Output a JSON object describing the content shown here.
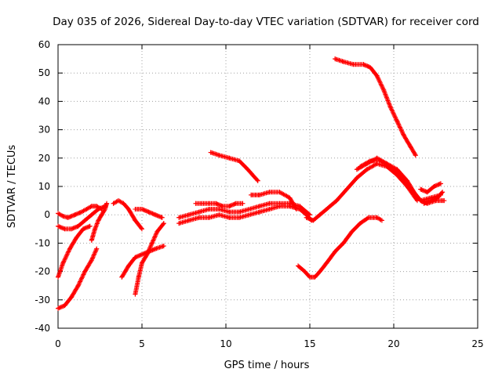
{
  "chart_data": {
    "type": "scatter",
    "title": "Day 035 of 2026, Sidereal Day-to-day VTEC variation (SDTVAR) for receiver cord",
    "xlabel": "GPS time / hours",
    "ylabel": "SDTVAR / TECUs",
    "xlim": [
      0,
      25
    ],
    "ylim": [
      -40,
      60
    ],
    "xticks": [
      0,
      5,
      10,
      15,
      20,
      25
    ],
    "yticks": [
      -40,
      -30,
      -20,
      -10,
      0,
      10,
      20,
      30,
      40,
      50,
      60
    ],
    "grid": true,
    "marker": "+",
    "color": "#ff0000",
    "series": [
      {
        "name": "s1",
        "x": [
          0.0,
          0.3,
          0.6,
          1.0,
          1.4,
          1.7,
          2.0,
          2.3,
          2.6
        ],
        "y": [
          0.5,
          -0.5,
          -1,
          0,
          1,
          2,
          3,
          3,
          2
        ]
      },
      {
        "name": "s2",
        "x": [
          0.0,
          0.4,
          0.8,
          1.2,
          1.6,
          2.0,
          2.4,
          2.8
        ],
        "y": [
          -4,
          -5,
          -5,
          -4,
          -2,
          0,
          2,
          3
        ]
      },
      {
        "name": "s3",
        "x": [
          0.0,
          0.3,
          0.7,
          1.1,
          1.5,
          1.9
        ],
        "y": [
          -22,
          -17,
          -12,
          -8,
          -5,
          -4
        ]
      },
      {
        "name": "s4",
        "x": [
          0.0,
          0.4,
          0.8,
          1.2,
          1.6,
          2.0,
          2.3
        ],
        "y": [
          -33,
          -32,
          -29,
          -25,
          -20,
          -16,
          -12
        ]
      },
      {
        "name": "s5",
        "x": [
          2.0,
          2.2,
          2.4,
          2.6,
          2.8,
          2.9
        ],
        "y": [
          -9,
          -5,
          -2,
          0,
          2,
          4
        ]
      },
      {
        "name": "s6",
        "x": [
          3.3,
          3.6,
          3.9,
          4.2,
          4.6,
          5.0
        ],
        "y": [
          4,
          5,
          4,
          2,
          -2,
          -5
        ]
      },
      {
        "name": "s7",
        "x": [
          4.6,
          5.0,
          5.4,
          5.8,
          6.2
        ],
        "y": [
          2,
          2,
          1,
          0,
          -1
        ]
      },
      {
        "name": "s8",
        "x": [
          3.8,
          4.2,
          4.6,
          5.0,
          5.4,
          5.8,
          6.3
        ],
        "y": [
          -22,
          -18,
          -15,
          -14,
          -13,
          -12,
          -11
        ]
      },
      {
        "name": "s9",
        "x": [
          4.6,
          4.8,
          5.0,
          5.3,
          5.6,
          5.9,
          6.3
        ],
        "y": [
          -28,
          -22,
          -17,
          -14,
          -10,
          -6,
          -3
        ]
      },
      {
        "name": "s10",
        "x": [
          7.2,
          7.8,
          8.4,
          9.0,
          9.6,
          10.2,
          10.8,
          11.4,
          12.0,
          12.6,
          13.2,
          13.8,
          14.4,
          14.8,
          15.1
        ],
        "y": [
          -3,
          -2,
          -1,
          -1,
          0,
          -1,
          -1,
          0,
          1,
          2,
          3,
          3,
          2,
          0,
          -2
        ]
      },
      {
        "name": "s11",
        "x": [
          7.2,
          7.8,
          8.4,
          9.0,
          9.6,
          10.2,
          10.8,
          11.4,
          12.0,
          12.6,
          13.2,
          13.8,
          14.4,
          15.0
        ],
        "y": [
          -1,
          0,
          1,
          2,
          2,
          1,
          1,
          2,
          3,
          4,
          4,
          4,
          3,
          0
        ]
      },
      {
        "name": "s12",
        "x": [
          8.2,
          8.6,
          9.0,
          9.4,
          9.8,
          10.2,
          10.6,
          11.0
        ],
        "y": [
          4,
          4,
          4,
          4,
          3,
          3,
          4,
          4
        ]
      },
      {
        "name": "s13",
        "x": [
          9.1,
          9.6,
          10.2,
          10.8,
          11.3,
          11.9
        ],
        "y": [
          22,
          21,
          20,
          19,
          16,
          12
        ]
      },
      {
        "name": "s14",
        "x": [
          11.5,
          12.0,
          12.6,
          13.2,
          13.8,
          14.2
        ],
        "y": [
          7,
          7,
          8,
          8,
          6,
          2
        ]
      },
      {
        "name": "s15",
        "x": [
          14.3,
          14.7,
          15.0,
          15.3,
          15.6,
          16.0,
          16.5,
          17.0,
          17.5,
          18.0,
          18.5,
          19.0,
          19.3
        ],
        "y": [
          -18,
          -20,
          -22,
          -22,
          -20,
          -17,
          -13,
          -10,
          -6,
          -3,
          -1,
          -1,
          -2
        ]
      },
      {
        "name": "s16",
        "x": [
          14.8,
          15.2,
          15.6,
          16.0,
          16.6,
          17.2,
          17.8,
          18.4,
          19.0,
          19.6,
          20.2,
          20.8,
          21.4
        ],
        "y": [
          -1,
          -2,
          0,
          2,
          5,
          9,
          13,
          16,
          18,
          17,
          14,
          10,
          5
        ]
      },
      {
        "name": "s17",
        "x": [
          16.5,
          17.0,
          17.6,
          18.2,
          18.6,
          19.0,
          19.4,
          19.8,
          20.2,
          20.6,
          21.0,
          21.3
        ],
        "y": [
          55,
          54,
          53,
          53,
          52,
          49,
          44,
          38,
          33,
          28,
          24,
          21
        ]
      },
      {
        "name": "s18",
        "x": [
          17.8,
          18.4,
          19.0,
          19.6,
          20.2,
          20.8,
          21.2,
          21.6,
          22.0,
          22.5,
          23.0
        ],
        "y": [
          16,
          18,
          20,
          18,
          16,
          12,
          8,
          5,
          4,
          5,
          5
        ]
      },
      {
        "name": "s19",
        "x": [
          18.0,
          18.6,
          19.2,
          19.8,
          20.4,
          21.0,
          21.6,
          22.2,
          22.8
        ],
        "y": [
          17,
          19,
          19,
          17,
          14,
          9,
          5,
          6,
          7
        ]
      },
      {
        "name": "s20",
        "x": [
          21.6,
          22.0,
          22.4,
          22.8
        ],
        "y": [
          9,
          8,
          10,
          11
        ]
      },
      {
        "name": "s21",
        "x": [
          21.8,
          22.2,
          22.6,
          22.9
        ],
        "y": [
          4,
          5,
          6,
          8
        ]
      }
    ]
  }
}
